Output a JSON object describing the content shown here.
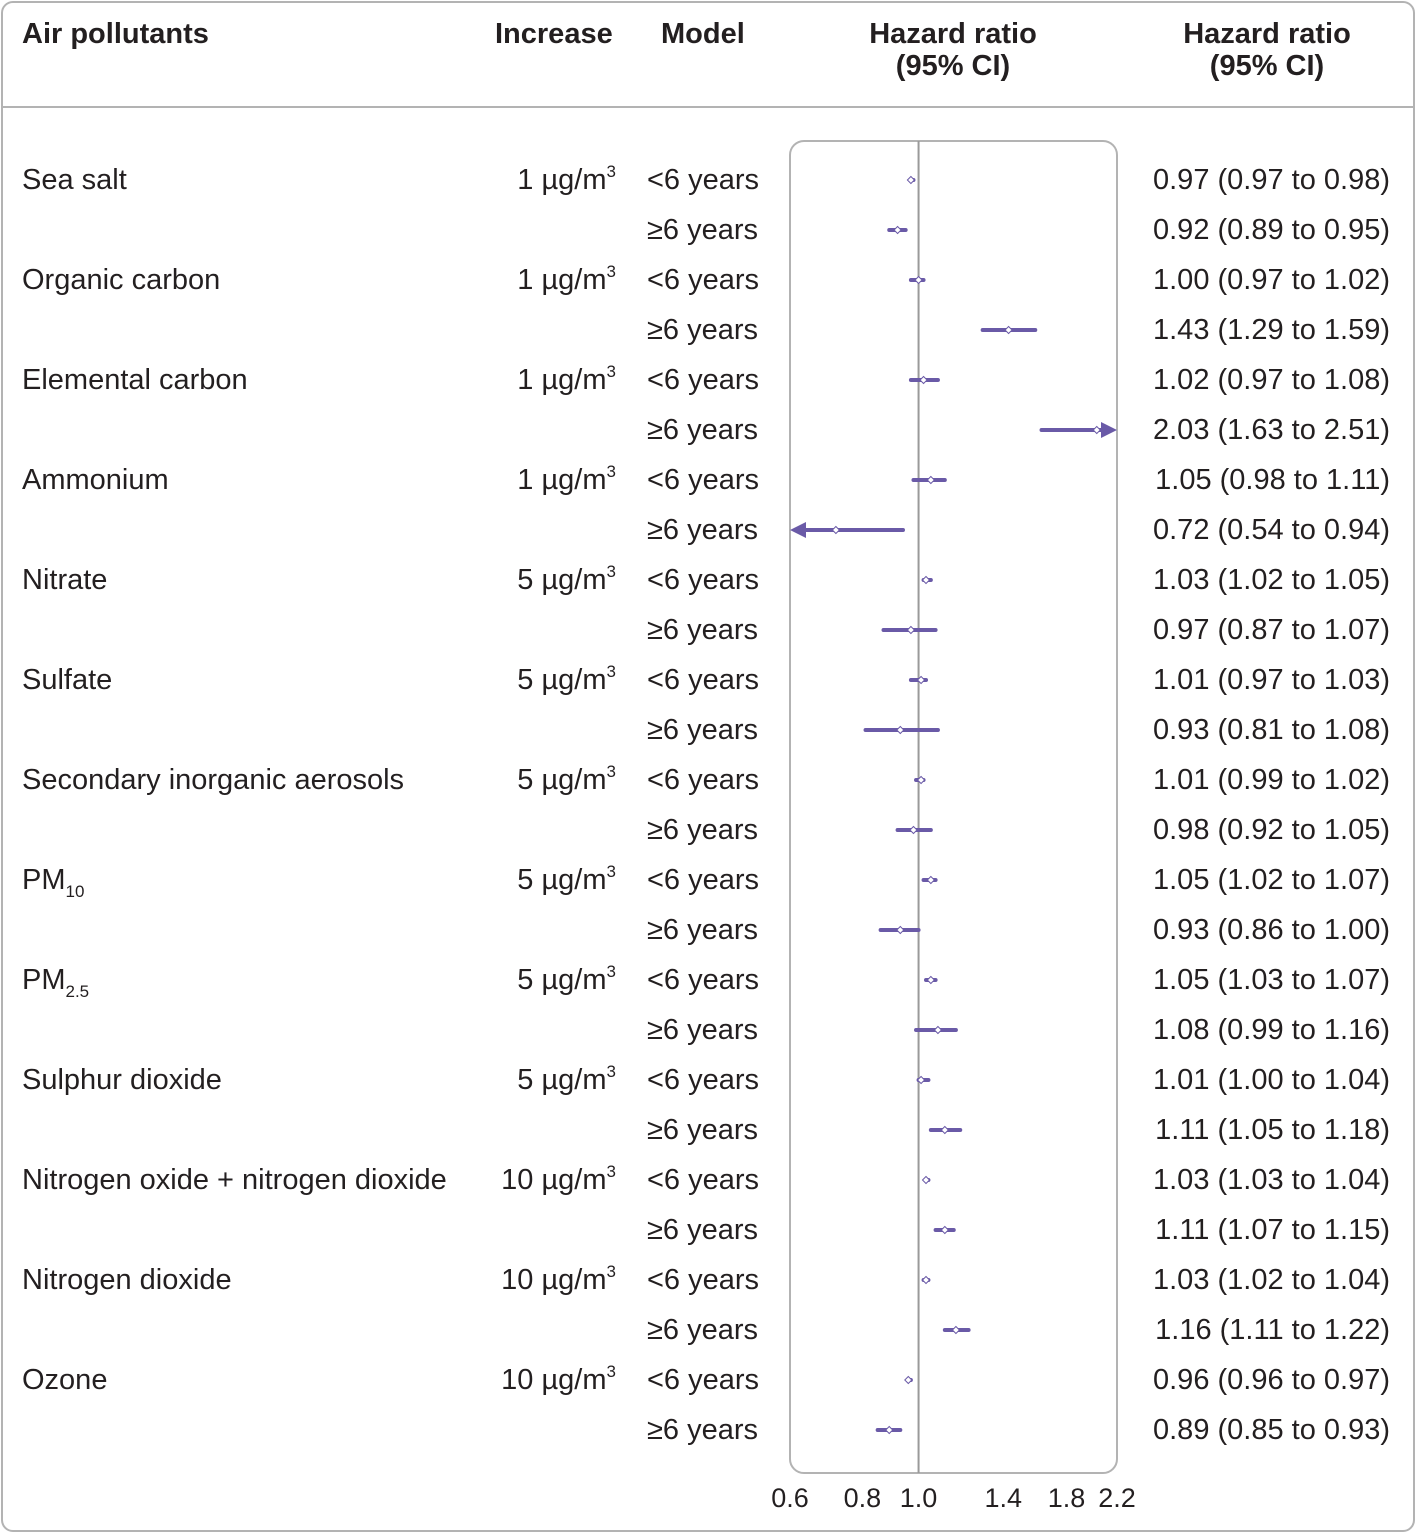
{
  "headers": {
    "pollutant": "Air pollutants",
    "increase": "Increase",
    "model": "Model",
    "plot_line1": "Hazard ratio",
    "plot_line2": "(95% CI)",
    "values_line1": "Hazard ratio",
    "values_line2": "(95% CI)"
  },
  "colors": {
    "series": "#6a5aa7",
    "text": "#231f20",
    "frame": "#b3b3b3",
    "reference_line": "#9a9a9a"
  },
  "pollutants": [
    {
      "name": "Sea salt",
      "sub": "",
      "increase": "1 µg/m",
      "unit_sup": "3"
    },
    {
      "name": "Organic carbon",
      "sub": "",
      "increase": "1 µg/m",
      "unit_sup": "3"
    },
    {
      "name": "Elemental carbon",
      "sub": "",
      "increase": "1 µg/m",
      "unit_sup": "3"
    },
    {
      "name": "Ammonium",
      "sub": "",
      "increase": "1 µg/m",
      "unit_sup": "3"
    },
    {
      "name": "Nitrate",
      "sub": "",
      "increase": "5 µg/m",
      "unit_sup": "3"
    },
    {
      "name": "Sulfate",
      "sub": "",
      "increase": "5 µg/m",
      "unit_sup": "3"
    },
    {
      "name": "Secondary inorganic aerosols",
      "sub": "",
      "increase": "5 µg/m",
      "unit_sup": "3"
    },
    {
      "name": "PM",
      "sub": "10",
      "increase": "5 µg/m",
      "unit_sup": "3"
    },
    {
      "name": "PM",
      "sub": "2.5",
      "increase": "5 µg/m",
      "unit_sup": "3"
    },
    {
      "name": "Sulphur dioxide",
      "sub": "",
      "increase": "5 µg/m",
      "unit_sup": "3"
    },
    {
      "name": "Nitrogen oxide + nitrogen dioxide",
      "sub": "",
      "increase": "10 µg/m",
      "unit_sup": "3"
    },
    {
      "name": "Nitrogen dioxide",
      "sub": "",
      "increase": "10 µg/m",
      "unit_sup": "3"
    },
    {
      "name": "Ozone",
      "sub": "",
      "increase": "10 µg/m",
      "unit_sup": "3"
    }
  ],
  "chart_data": {
    "type": "forest",
    "x_ticks": [
      0.6,
      0.8,
      1.0,
      1.4,
      1.8,
      2.2
    ],
    "x_tick_labels": [
      "0.6",
      "0.8",
      "1.0",
      "1.4",
      "1.8",
      "2.2"
    ],
    "x_scale": "log",
    "xlim": [
      0.6,
      2.2
    ],
    "reference_value": 1.0,
    "rows": [
      {
        "pollutant": 0,
        "model": "<6 years",
        "hr": 0.97,
        "lo": 0.97,
        "hi": 0.98,
        "label": "0.97 (0.97 to 0.98)"
      },
      {
        "pollutant": 0,
        "model": "≥6 years",
        "hr": 0.92,
        "lo": 0.89,
        "hi": 0.95,
        "label": "0.92 (0.89 to 0.95)"
      },
      {
        "pollutant": 1,
        "model": "<6 years",
        "hr": 1.0,
        "lo": 0.97,
        "hi": 1.02,
        "label": "1.00 (0.97 to 1.02)"
      },
      {
        "pollutant": 1,
        "model": "≥6 years",
        "hr": 1.43,
        "lo": 1.29,
        "hi": 1.59,
        "label": "1.43 (1.29 to 1.59)"
      },
      {
        "pollutant": 2,
        "model": "<6 years",
        "hr": 1.02,
        "lo": 0.97,
        "hi": 1.08,
        "label": "1.02 (0.97 to 1.08)"
      },
      {
        "pollutant": 2,
        "model": "≥6 years",
        "hr": 2.03,
        "lo": 1.63,
        "hi": 2.51,
        "label": "2.03 (1.63 to 2.51)"
      },
      {
        "pollutant": 3,
        "model": "<6 years",
        "hr": 1.05,
        "lo": 0.98,
        "hi": 1.11,
        "label": "1.05 (0.98 to 1.11)"
      },
      {
        "pollutant": 3,
        "model": "≥6 years",
        "hr": 0.72,
        "lo": 0.54,
        "hi": 0.94,
        "label": "0.72 (0.54 to 0.94)"
      },
      {
        "pollutant": 4,
        "model": "<6 years",
        "hr": 1.03,
        "lo": 1.02,
        "hi": 1.05,
        "label": "1.03 (1.02 to 1.05)"
      },
      {
        "pollutant": 4,
        "model": "≥6 years",
        "hr": 0.97,
        "lo": 0.87,
        "hi": 1.07,
        "label": "0.97 (0.87 to 1.07)"
      },
      {
        "pollutant": 5,
        "model": "<6 years",
        "hr": 1.01,
        "lo": 0.97,
        "hi": 1.03,
        "label": "1.01 (0.97 to 1.03)"
      },
      {
        "pollutant": 5,
        "model": "≥6 years",
        "hr": 0.93,
        "lo": 0.81,
        "hi": 1.08,
        "label": "0.93 (0.81 to 1.08)"
      },
      {
        "pollutant": 6,
        "model": "<6 years",
        "hr": 1.01,
        "lo": 0.99,
        "hi": 1.02,
        "label": "1.01 (0.99 to 1.02)"
      },
      {
        "pollutant": 6,
        "model": "≥6 years",
        "hr": 0.98,
        "lo": 0.92,
        "hi": 1.05,
        "label": "0.98 (0.92 to 1.05)"
      },
      {
        "pollutant": 7,
        "model": "<6 years",
        "hr": 1.05,
        "lo": 1.02,
        "hi": 1.07,
        "label": "1.05 (1.02 to 1.07)"
      },
      {
        "pollutant": 7,
        "model": "≥6 years",
        "hr": 0.93,
        "lo": 0.86,
        "hi": 1.0,
        "label": "0.93 (0.86 to 1.00)"
      },
      {
        "pollutant": 8,
        "model": "<6 years",
        "hr": 1.05,
        "lo": 1.03,
        "hi": 1.07,
        "label": "1.05 (1.03 to 1.07)"
      },
      {
        "pollutant": 8,
        "model": "≥6 years",
        "hr": 1.08,
        "lo": 0.99,
        "hi": 1.16,
        "label": "1.08 (0.99 to 1.16)"
      },
      {
        "pollutant": 9,
        "model": "<6 years",
        "hr": 1.01,
        "lo": 1.0,
        "hi": 1.04,
        "label": "1.01 (1.00 to 1.04)"
      },
      {
        "pollutant": 9,
        "model": "≥6 years",
        "hr": 1.11,
        "lo": 1.05,
        "hi": 1.18,
        "label": "1.11 (1.05 to 1.18)"
      },
      {
        "pollutant": 10,
        "model": "<6 years",
        "hr": 1.03,
        "lo": 1.03,
        "hi": 1.04,
        "label": "1.03 (1.03 to 1.04)"
      },
      {
        "pollutant": 10,
        "model": "≥6 years",
        "hr": 1.11,
        "lo": 1.07,
        "hi": 1.15,
        "label": "1.11 (1.07 to 1.15)"
      },
      {
        "pollutant": 11,
        "model": "<6 years",
        "hr": 1.03,
        "lo": 1.02,
        "hi": 1.04,
        "label": "1.03 (1.02 to 1.04)"
      },
      {
        "pollutant": 11,
        "model": "≥6 years",
        "hr": 1.16,
        "lo": 1.11,
        "hi": 1.22,
        "label": "1.16 (1.11 to 1.22)"
      },
      {
        "pollutant": 12,
        "model": "<6 years",
        "hr": 0.96,
        "lo": 0.96,
        "hi": 0.97,
        "label": "0.96 (0.96 to 0.97)"
      },
      {
        "pollutant": 12,
        "model": "≥6 years",
        "hr": 0.89,
        "lo": 0.85,
        "hi": 0.93,
        "label": "0.89 (0.85 to 0.93)"
      }
    ]
  }
}
